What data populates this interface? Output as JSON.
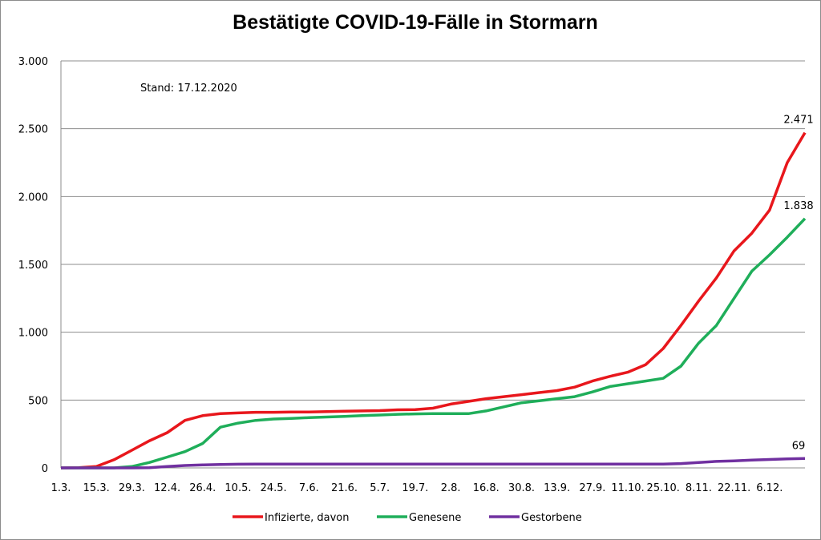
{
  "chart_data": {
    "type": "line",
    "title": "Bestätigte COVID-19-Fälle in Stormarn",
    "annotation": "Stand: 17.12.2020",
    "categories": [
      "1.3.",
      null,
      "15.3.",
      null,
      "29.3.",
      null,
      "12.4.",
      null,
      "26.4.",
      null,
      "10.5.",
      null,
      "24.5.",
      null,
      "7.6.",
      null,
      "21.6.",
      null,
      "5.7.",
      null,
      "19.7.",
      null,
      "2.8.",
      null,
      "16.8.",
      null,
      "30.8.",
      null,
      "13.9.",
      null,
      "27.9.",
      null,
      "11.10.",
      null,
      "25.10.",
      null,
      "8.11.",
      null,
      "22.11.",
      null,
      "6.12.",
      null,
      null
    ],
    "series": [
      {
        "name": "Infizierte, davon",
        "color": "#e8171c",
        "values": [
          0,
          2,
          10,
          60,
          130,
          200,
          260,
          350,
          385,
          400,
          405,
          410,
          410,
          412,
          412,
          415,
          418,
          420,
          422,
          428,
          430,
          440,
          470,
          490,
          510,
          525,
          540,
          555,
          570,
          595,
          640,
          675,
          705,
          760,
          880,
          1050,
          1230,
          1400,
          1600,
          1730,
          1900,
          2250,
          2471
        ],
        "value_labels": [
          null,
          null,
          null,
          null,
          null,
          null,
          null,
          null,
          null,
          null,
          null,
          null,
          null,
          null,
          null,
          null,
          null,
          null,
          null,
          null,
          null,
          null,
          null,
          null,
          null,
          null,
          null,
          null,
          null,
          null,
          null,
          null,
          null,
          null,
          null,
          null,
          null,
          null,
          null,
          null,
          null,
          null,
          "2.471"
        ]
      },
      {
        "name": "Genesene",
        "color": "#1fae5a",
        "values": [
          0,
          0,
          0,
          0,
          10,
          40,
          80,
          120,
          180,
          300,
          330,
          350,
          360,
          365,
          370,
          375,
          380,
          385,
          390,
          395,
          398,
          400,
          400,
          400,
          420,
          450,
          480,
          495,
          510,
          525,
          560,
          600,
          620,
          640,
          660,
          750,
          920,
          1050,
          1250,
          1450,
          1570,
          1700,
          1838
        ],
        "value_labels": [
          null,
          null,
          null,
          null,
          null,
          null,
          null,
          null,
          null,
          null,
          null,
          null,
          null,
          null,
          null,
          null,
          null,
          null,
          null,
          null,
          null,
          null,
          null,
          null,
          null,
          null,
          null,
          null,
          null,
          null,
          null,
          null,
          null,
          null,
          null,
          null,
          null,
          null,
          null,
          null,
          null,
          null,
          "1.838"
        ]
      },
      {
        "name": "Gestorbene",
        "color": "#7030a0",
        "values": [
          0,
          0,
          0,
          0,
          0,
          2,
          10,
          18,
          22,
          25,
          27,
          28,
          28,
          28,
          28,
          28,
          28,
          28,
          28,
          28,
          28,
          28,
          28,
          28,
          28,
          28,
          28,
          28,
          28,
          28,
          28,
          28,
          28,
          28,
          28,
          32,
          40,
          48,
          52,
          58,
          62,
          66,
          69
        ],
        "value_labels": [
          null,
          null,
          null,
          null,
          null,
          null,
          null,
          null,
          null,
          null,
          null,
          null,
          null,
          null,
          null,
          null,
          null,
          null,
          null,
          null,
          null,
          null,
          null,
          null,
          null,
          null,
          null,
          null,
          null,
          null,
          null,
          null,
          null,
          null,
          null,
          null,
          null,
          null,
          null,
          null,
          null,
          null,
          "69"
        ]
      }
    ],
    "ylim": [
      0,
      3000
    ],
    "yticks": [
      0,
      500,
      {
        "value": 1000,
        "label": "1.000"
      },
      {
        "value": 1500,
        "label": "1.500"
      },
      {
        "value": 2000,
        "label": "2.000"
      },
      {
        "value": 2500,
        "label": "2.500"
      },
      {
        "value": 3000,
        "label": "3.000"
      }
    ],
    "grid": true,
    "legend": "bottom"
  }
}
